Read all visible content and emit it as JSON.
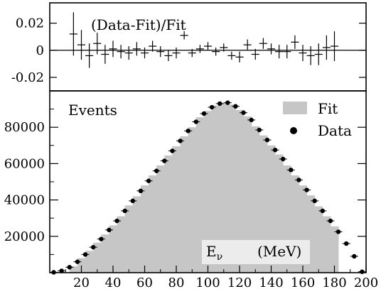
{
  "chart_data": [
    {
      "type": "scatter",
      "role": "residual-panel",
      "title": "(Data-Fit)/Fit",
      "xlabel": "",
      "ylabel": "",
      "xlim": [
        0,
        200
      ],
      "ylim": [
        -0.03,
        0.035
      ],
      "yticks": [
        0.02,
        0,
        -0.02
      ],
      "ytick_labels": [
        "0.02",
        "0",
        "-0.02"
      ],
      "reference_line": 0,
      "x": [
        15,
        20,
        25,
        30,
        35,
        40,
        45,
        50,
        55,
        60,
        65,
        70,
        75,
        80,
        85,
        90,
        95,
        100,
        105,
        110,
        115,
        120,
        125,
        130,
        135,
        140,
        145,
        150,
        155,
        160,
        165,
        170,
        175,
        180
      ],
      "values": [
        0.012,
        0.004,
        -0.004,
        0.005,
        -0.003,
        0.001,
        -0.001,
        -0.002,
        0.001,
        -0.002,
        0.003,
        -0.001,
        -0.004,
        -0.002,
        0.011,
        -0.002,
        0.001,
        0.003,
        -0.001,
        0.002,
        -0.004,
        -0.005,
        0.004,
        -0.003,
        0.005,
        0.001,
        -0.001,
        -0.001,
        0.006,
        -0.002,
        -0.004,
        -0.003,
        0.002,
        0.003
      ],
      "errors": [
        0.016,
        0.011,
        0.009,
        0.008,
        0.007,
        0.006,
        0.005,
        0.005,
        0.005,
        0.004,
        0.004,
        0.004,
        0.004,
        0.004,
        0.003,
        0.003,
        0.003,
        0.003,
        0.003,
        0.003,
        0.003,
        0.004,
        0.004,
        0.004,
        0.004,
        0.004,
        0.005,
        0.005,
        0.005,
        0.006,
        0.007,
        0.008,
        0.009,
        0.011
      ]
    },
    {
      "type": "bar",
      "role": "main-panel",
      "xlabel": "Eν",
      "xlabel_base": "E",
      "xlabel_sub": "ν",
      "xlabel_unit": "(MeV)",
      "ylabel": "Events",
      "xlim": [
        0,
        200
      ],
      "ylim": [
        0,
        100000
      ],
      "xticks": [
        20,
        40,
        60,
        80,
        100,
        120,
        140,
        160,
        180,
        200
      ],
      "xtick_labels": [
        "20",
        "40",
        "60",
        "80",
        "100",
        "120",
        "140",
        "160",
        "180",
        "200"
      ],
      "yticks": [
        20000,
        40000,
        60000,
        80000
      ],
      "ytick_labels": [
        "20000",
        "40000",
        "60000",
        "80000"
      ],
      "bin_width": 5,
      "legend_position": "top-right",
      "series": [
        {
          "name": "Fit",
          "color": "#c6c6c6",
          "x": [
            15,
            20,
            25,
            30,
            35,
            40,
            45,
            50,
            55,
            60,
            65,
            70,
            75,
            80,
            85,
            90,
            95,
            100,
            105,
            110,
            115,
            120,
            125,
            130,
            135,
            140,
            145,
            150,
            155,
            160,
            165,
            170,
            175,
            180
          ],
          "values": [
            3500,
            8000,
            12000,
            16500,
            21000,
            26000,
            31000,
            37000,
            42000,
            48000,
            53500,
            59000,
            64500,
            69500,
            75000,
            80000,
            85500,
            89000,
            92000,
            93500,
            92500,
            89500,
            86000,
            80500,
            75500,
            70000,
            65000,
            59000,
            53500,
            48000,
            42500,
            36500,
            31000,
            25500
          ]
        },
        {
          "name": "Data",
          "color": "#000000",
          "x": [
            2.5,
            7.5,
            12.5,
            17.5,
            22.5,
            27.5,
            32.5,
            37.5,
            42.5,
            47.5,
            52.5,
            57.5,
            62.5,
            67.5,
            72.5,
            77.5,
            82.5,
            87.5,
            92.5,
            97.5,
            102.5,
            107.5,
            112.5,
            117.5,
            122.5,
            127.5,
            132.5,
            137.5,
            142.5,
            147.5,
            152.5,
            157.5,
            162.5,
            167.5,
            172.5,
            177.5,
            182.5,
            187.5,
            192.5,
            197.5
          ],
          "values": [
            200,
            1000,
            3000,
            6000,
            10000,
            14000,
            18500,
            23500,
            28500,
            34000,
            39500,
            45000,
            50500,
            56000,
            61500,
            67000,
            72500,
            78000,
            83000,
            87500,
            91000,
            93000,
            93500,
            91500,
            88000,
            84000,
            78500,
            73000,
            67500,
            62500,
            56500,
            51000,
            45500,
            39500,
            34000,
            28500,
            22500,
            16000,
            9000,
            500
          ]
        }
      ]
    }
  ]
}
